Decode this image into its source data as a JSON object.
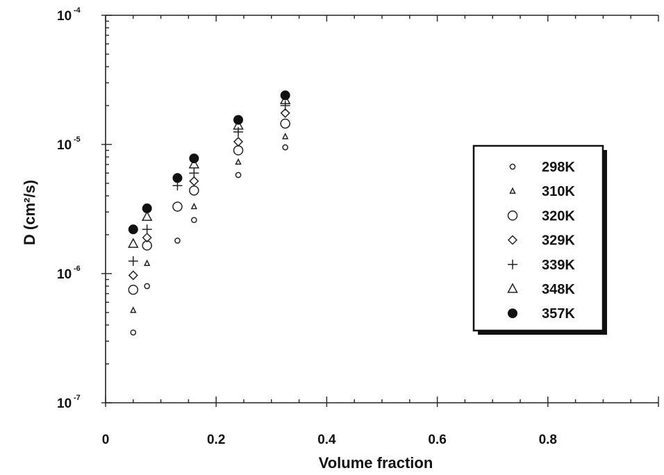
{
  "chart_data": {
    "type": "scatter",
    "xlabel": "Volume  fraction",
    "ylabel": "D (cm²/s)",
    "xlim": [
      0,
      1.0
    ],
    "ylim": [
      1e-07,
      0.0001
    ],
    "yscale": "log",
    "x_ticks": [
      "0",
      "0.2",
      "0.4",
      "0.6",
      "0.8"
    ],
    "y_ticks": [
      {
        "base": "10",
        "exp": "-4",
        "value": 0.0001
      },
      {
        "base": "10",
        "exp": "-5",
        "value": 1e-05
      },
      {
        "base": "10",
        "exp": "-6",
        "value": 1e-06
      },
      {
        "base": "10",
        "exp": "-7",
        "value": 1e-07
      }
    ],
    "grid": false,
    "legend_position": "right",
    "series": [
      {
        "name": "298K",
        "marker": "small-circle",
        "points": [
          [
            0.05,
            3.5e-07
          ],
          [
            0.075,
            8e-07
          ],
          [
            0.13,
            1.8e-06
          ],
          [
            0.16,
            2.6e-06
          ],
          [
            0.24,
            5.8e-06
          ],
          [
            0.325,
            9.5e-06
          ]
        ]
      },
      {
        "name": "310K",
        "marker": "small-triangle",
        "points": [
          [
            0.05,
            5.2e-07
          ],
          [
            0.075,
            1.2e-06
          ],
          [
            0.16,
            3.3e-06
          ],
          [
            0.24,
            7.3e-06
          ],
          [
            0.325,
            1.15e-05
          ]
        ]
      },
      {
        "name": "320K",
        "marker": "circle",
        "points": [
          [
            0.05,
            7.5e-07
          ],
          [
            0.075,
            1.65e-06
          ],
          [
            0.13,
            3.3e-06
          ],
          [
            0.16,
            4.4e-06
          ],
          [
            0.24,
            9e-06
          ],
          [
            0.325,
            1.45e-05
          ]
        ]
      },
      {
        "name": "329K",
        "marker": "diamond",
        "points": [
          [
            0.05,
            9.7e-07
          ],
          [
            0.075,
            1.9e-06
          ],
          [
            0.16,
            5.2e-06
          ],
          [
            0.24,
            1.05e-05
          ],
          [
            0.325,
            1.75e-05
          ]
        ]
      },
      {
        "name": "339K",
        "marker": "plus",
        "points": [
          [
            0.05,
            1.25e-06
          ],
          [
            0.075,
            2.2e-06
          ],
          [
            0.13,
            4.8e-06
          ],
          [
            0.16,
            6e-06
          ],
          [
            0.24,
            1.25e-05
          ],
          [
            0.325,
            2e-05
          ]
        ]
      },
      {
        "name": "348K",
        "marker": "triangle",
        "points": [
          [
            0.05,
            1.7e-06
          ],
          [
            0.075,
            2.75e-06
          ],
          [
            0.16,
            7e-06
          ],
          [
            0.24,
            1.4e-05
          ],
          [
            0.325,
            2.2e-05
          ]
        ]
      },
      {
        "name": "357K",
        "marker": "filled-circle",
        "points": [
          [
            0.05,
            2.2e-06
          ],
          [
            0.075,
            3.2e-06
          ],
          [
            0.13,
            5.5e-06
          ],
          [
            0.16,
            7.8e-06
          ],
          [
            0.24,
            1.55e-05
          ],
          [
            0.325,
            2.4e-05
          ]
        ]
      }
    ]
  }
}
